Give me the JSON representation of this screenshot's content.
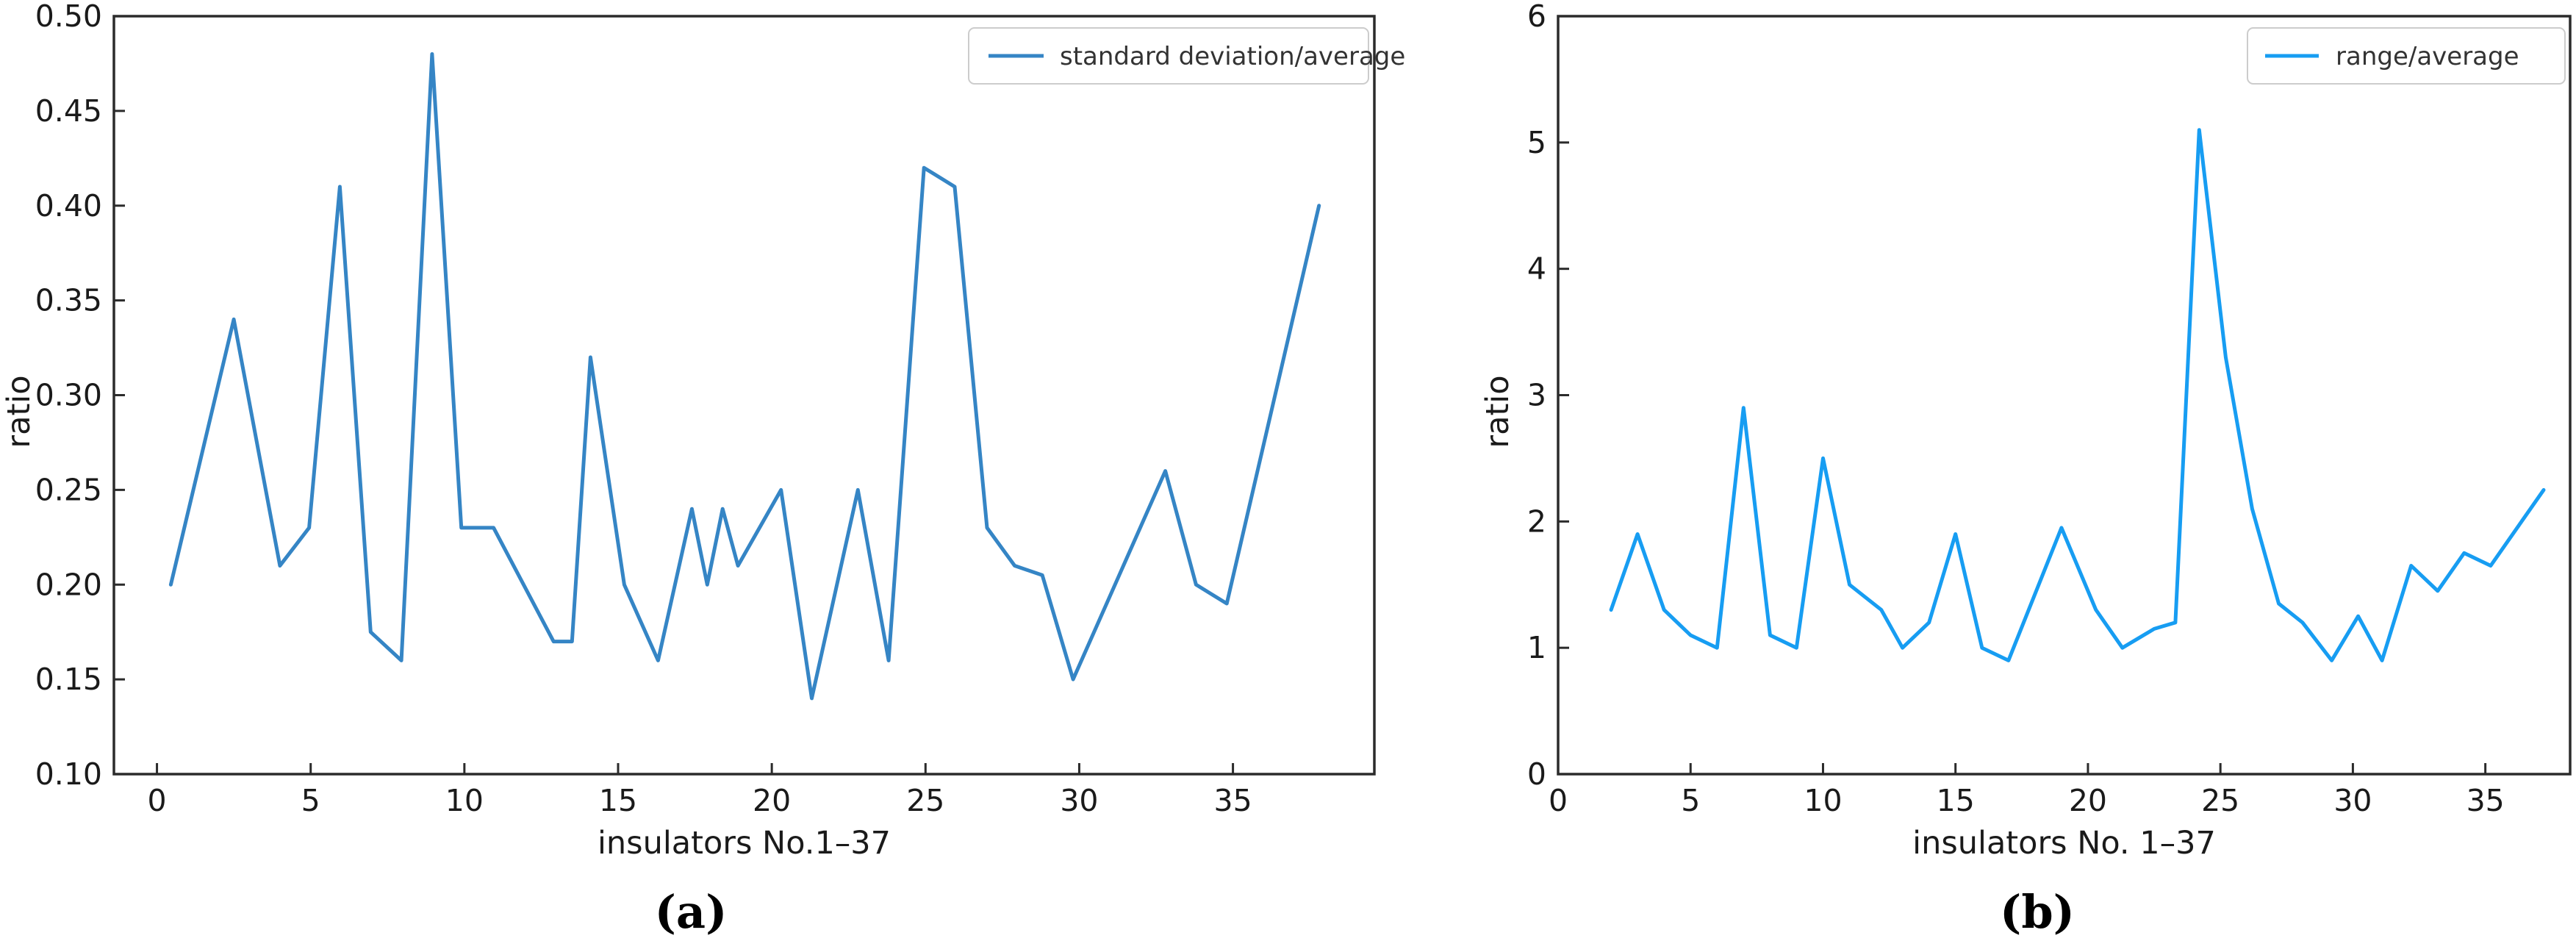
{
  "figure": {
    "background": "#ffffff",
    "spine_color": "#2b2b2b",
    "tick_label_color": "#1a1a1a",
    "legend_border_color": "#cccccc",
    "legend_background": "#ffffff"
  },
  "chart_data": [
    {
      "id": "a",
      "type": "line",
      "caption": "(a)",
      "xlabel": "insulators No.1–37",
      "ylabel": "ratio",
      "legend_label": "standard deviation/average",
      "legend_position": "upper right",
      "line_color": "#3585c5",
      "grid": false,
      "xlim": [
        -1.4,
        39.6
      ],
      "ylim": [
        0.1,
        0.5
      ],
      "xticks": [
        0,
        5,
        10,
        15,
        20,
        25,
        30,
        35
      ],
      "xtick_labels": [
        "0",
        "5",
        "10",
        "15",
        "20",
        "25",
        "30",
        "35"
      ],
      "yticks": [
        0.1,
        0.15,
        0.2,
        0.25,
        0.3,
        0.35,
        0.4,
        0.45,
        0.5
      ],
      "ytick_labels": [
        "0.10",
        "0.15",
        "0.20",
        "0.25",
        "0.30",
        "0.35",
        "0.40",
        "0.45",
        "0.50"
      ],
      "x": [
        0.45,
        2.5,
        4.0,
        4.95,
        5.95,
        6.95,
        7.95,
        8.95,
        9.9,
        10.95,
        12.9,
        13.5,
        14.1,
        15.2,
        16.3,
        17.4,
        17.9,
        18.4,
        18.9,
        20.3,
        21.3,
        22.8,
        23.8,
        24.95,
        25.95,
        27.0,
        27.9,
        28.8,
        29.8,
        32.8,
        33.8,
        34.8,
        37.8
      ],
      "y": [
        0.2,
        0.34,
        0.21,
        0.23,
        0.41,
        0.175,
        0.16,
        0.48,
        0.23,
        0.23,
        0.17,
        0.17,
        0.32,
        0.2,
        0.16,
        0.24,
        0.2,
        0.24,
        0.21,
        0.25,
        0.14,
        0.25,
        0.16,
        0.42,
        0.41,
        0.23,
        0.21,
        0.205,
        0.15,
        0.26,
        0.2,
        0.19,
        0.4
      ]
    },
    {
      "id": "b",
      "type": "line",
      "caption": "(b)",
      "xlabel": "insulators No. 1–37",
      "ylabel": "ratio",
      "legend_label": "range/average",
      "legend_position": "upper right",
      "line_color": "#179df2",
      "grid": false,
      "xlim": [
        0,
        38.2
      ],
      "ylim": [
        0,
        6
      ],
      "xticks": [
        0,
        5,
        10,
        15,
        20,
        25,
        30,
        35
      ],
      "xtick_labels": [
        "0",
        "5",
        "10",
        "15",
        "20",
        "25",
        "30",
        "35"
      ],
      "yticks": [
        0,
        1,
        2,
        3,
        4,
        5,
        6
      ],
      "ytick_labels": [
        "0",
        "1",
        "2",
        "3",
        "4",
        "5",
        "6"
      ],
      "x": [
        2,
        3,
        4,
        5,
        6,
        7,
        8,
        9,
        10,
        11,
        11.6,
        12.2,
        13,
        14,
        15,
        16,
        17,
        19,
        20.3,
        21.3,
        22.5,
        23.3,
        24.2,
        25.2,
        26.2,
        27.2,
        28.1,
        29.2,
        30.2,
        31.1,
        32.2,
        33.2,
        34.2,
        35.2,
        37.2
      ],
      "y": [
        1.3,
        1.9,
        1.3,
        1.1,
        1.0,
        2.9,
        1.1,
        1.0,
        2.5,
        1.5,
        1.4,
        1.3,
        1.0,
        1.2,
        1.9,
        1.0,
        0.9,
        1.95,
        1.3,
        1.0,
        1.15,
        1.2,
        5.1,
        3.3,
        2.1,
        1.35,
        1.2,
        0.9,
        1.25,
        0.9,
        1.65,
        1.45,
        1.75,
        1.65,
        2.25
      ]
    }
  ]
}
